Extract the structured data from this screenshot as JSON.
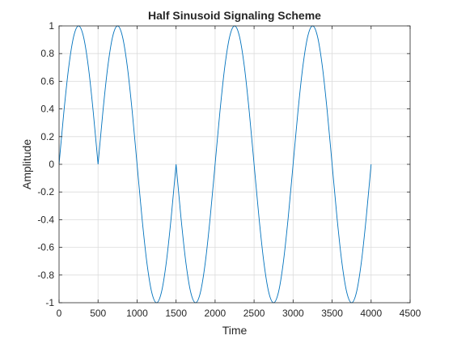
{
  "chart_data": {
    "type": "line",
    "title": "Half Sinusoid Signaling Scheme",
    "xlabel": "Time",
    "ylabel": "Amplitude",
    "xlim": [
      0,
      4500
    ],
    "ylim": [
      -1,
      1
    ],
    "x_ticks": [
      0,
      500,
      1000,
      1500,
      2000,
      2500,
      3000,
      3500,
      4000,
      4500
    ],
    "y_ticks": [
      -1,
      -0.8,
      -0.6,
      -0.4,
      -0.2,
      0,
      0.2,
      0.4,
      0.6,
      0.8,
      1
    ],
    "x_tick_labels": [
      "0",
      "500",
      "1000",
      "1500",
      "2000",
      "2500",
      "3000",
      "3500",
      "4000",
      "4500"
    ],
    "y_tick_labels": [
      "-1",
      "-0.8",
      "-0.6",
      "-0.4",
      "-0.2",
      "0",
      "0.2",
      "0.4",
      "0.6",
      "0.8",
      "1"
    ],
    "grid": true,
    "series": [
      {
        "color": "#0072BD",
        "x": [
          0,
          62.5,
          125,
          187.5,
          250,
          312.5,
          375,
          437.5,
          500,
          562.5,
          625,
          687.5,
          750,
          812.5,
          875,
          937.5,
          1000,
          1062.5,
          1125,
          1187.5,
          1250,
          1312.5,
          1375,
          1437.5,
          1500,
          1562.5,
          1625,
          1687.5,
          1750,
          1812.5,
          1875,
          1937.5,
          2000,
          2062.5,
          2125,
          2187.5,
          2250,
          2312.5,
          2375,
          2437.5,
          2500,
          2562.5,
          2625,
          2687.5,
          2750,
          2812.5,
          2875,
          2937.5,
          3000,
          3062.5,
          3125,
          3187.5,
          3250,
          3312.5,
          3375,
          3437.5,
          3500,
          3562.5,
          3625,
          3687.5,
          3750,
          3812.5,
          3875,
          3937.5,
          4000
        ],
        "y": [
          0,
          0.383,
          0.707,
          0.924,
          1,
          0.924,
          0.707,
          0.383,
          0,
          0.383,
          0.707,
          0.924,
          1,
          0.924,
          0.707,
          0.383,
          0,
          -0.383,
          -0.707,
          -0.924,
          -1,
          -0.924,
          -0.707,
          -0.383,
          0,
          -0.383,
          -0.707,
          -0.924,
          -1,
          -0.924,
          -0.707,
          -0.383,
          0,
          0.383,
          0.707,
          0.924,
          1,
          0.924,
          0.707,
          0.383,
          0,
          -0.383,
          -0.707,
          -0.924,
          -1,
          -0.924,
          -0.707,
          -0.383,
          0,
          0.383,
          0.707,
          0.924,
          1,
          0.924,
          0.707,
          0.383,
          0,
          -0.383,
          -0.707,
          -0.924,
          -1,
          -0.924,
          -0.707,
          -0.383,
          0
        ]
      }
    ]
  }
}
